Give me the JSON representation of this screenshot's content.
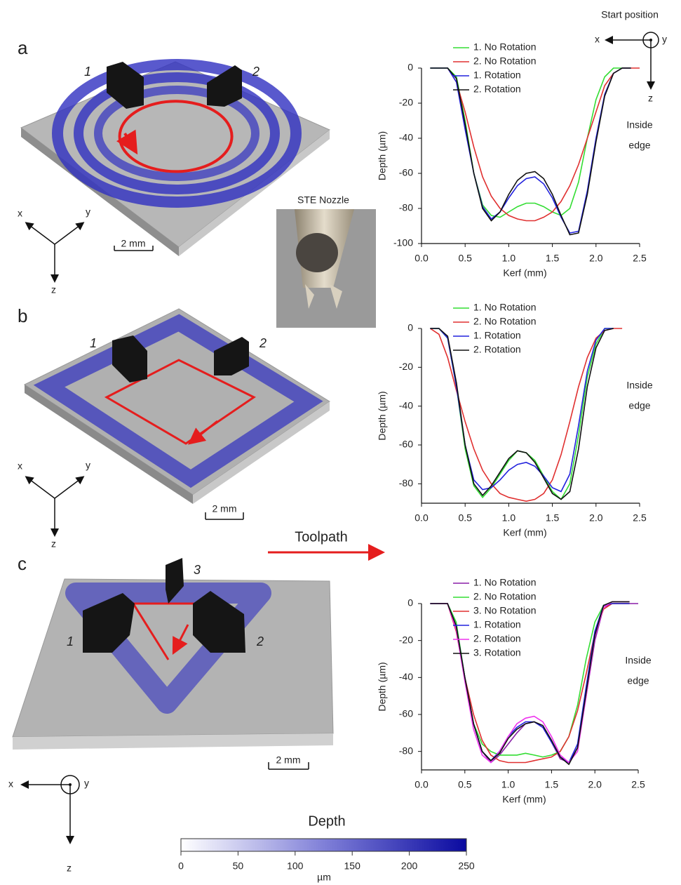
{
  "chart_data": [
    {
      "type": "line",
      "xlabel": "Kerf (mm)",
      "ylabel": "Depth (µm)",
      "annotation": [
        "Inside",
        "edge"
      ],
      "x": [
        0,
        0.1,
        0.2,
        0.3,
        0.4,
        0.5,
        0.6,
        0.7,
        0.8,
        0.9,
        1.0,
        1.1,
        1.2,
        1.3,
        1.4,
        1.5,
        1.6,
        1.7,
        1.8,
        1.9,
        2.0,
        2.1,
        2.2,
        2.3,
        2.4,
        2.5
      ],
      "xlim": [
        0,
        2.5
      ],
      "ylim": [
        -100,
        0
      ],
      "xticks": [
        {
          "value": 0,
          "label": "0.0"
        },
        0.5,
        {
          "value": 1,
          "label": "1.0"
        },
        1.5,
        {
          "value": 2,
          "label": "2.0"
        },
        2.5
      ],
      "yticks": [
        0,
        -20,
        -40,
        -60,
        -80,
        -100
      ],
      "series": [
        {
          "name": "1. No Rotation",
          "color": "#33dd33",
          "values": [
            null,
            0,
            0,
            0,
            -5,
            -30,
            -60,
            -78,
            -84,
            -85,
            -82,
            -79,
            -77,
            -77,
            -79,
            -82,
            -84,
            -80,
            -65,
            -40,
            -18,
            -5,
            0,
            0,
            0,
            null
          ]
        },
        {
          "name": "2. No Rotation",
          "color": "#e03030",
          "values": [
            null,
            null,
            null,
            0,
            -8,
            -25,
            -45,
            -62,
            -73,
            -80,
            -84,
            -86,
            -87,
            -87,
            -85,
            -82,
            -76,
            -67,
            -55,
            -40,
            -25,
            -10,
            -3,
            0,
            0,
            0
          ]
        },
        {
          "name": "1. Rotation",
          "color": "#2222dd",
          "values": [
            null,
            0,
            0,
            0,
            -8,
            -35,
            -60,
            -79,
            -86,
            -82,
            -74,
            -67,
            -63,
            -62,
            -66,
            -74,
            -85,
            -94,
            -93,
            -70,
            -40,
            -15,
            -3,
            0,
            0,
            null
          ]
        },
        {
          "name": "2. Rotation",
          "color": "#111111",
          "values": [
            null,
            0,
            0,
            0,
            -6,
            -32,
            -60,
            -80,
            -87,
            -82,
            -72,
            -64,
            -60,
            -59,
            -63,
            -72,
            -84,
            -95,
            -94,
            -72,
            -42,
            -16,
            -3,
            0,
            0,
            null
          ]
        }
      ]
    },
    {
      "type": "line",
      "xlabel": "Kerf (mm)",
      "ylabel": "Depth (µm)",
      "annotation": [
        "Inside",
        "edge"
      ],
      "x": [
        0,
        0.1,
        0.2,
        0.3,
        0.4,
        0.5,
        0.6,
        0.7,
        0.8,
        0.9,
        1.0,
        1.1,
        1.2,
        1.3,
        1.4,
        1.5,
        1.6,
        1.7,
        1.8,
        1.9,
        2.0,
        2.1,
        2.2,
        2.3,
        2.4,
        2.5
      ],
      "xlim": [
        0,
        2.5
      ],
      "ylim": [
        -90,
        0
      ],
      "xticks": [
        {
          "value": 0,
          "label": "0.0"
        },
        0.5,
        {
          "value": 1,
          "label": "1.0"
        },
        1.5,
        {
          "value": 2,
          "label": "2.0"
        },
        2.5
      ],
      "yticks": [
        0,
        -20,
        -40,
        -60,
        -80
      ],
      "series": [
        {
          "name": "1. No Rotation",
          "color": "#33dd33",
          "values": [
            null,
            0,
            0,
            -5,
            -30,
            -62,
            -81,
            -87,
            -82,
            -75,
            -68,
            -63,
            -64,
            -68,
            -76,
            -84,
            -88,
            -80,
            -55,
            -25,
            -8,
            0,
            0,
            null,
            null,
            null
          ]
        },
        {
          "name": "2. No Rotation",
          "color": "#e03030",
          "values": [
            null,
            0,
            -3,
            -15,
            -32,
            -48,
            -62,
            -73,
            -80,
            -85,
            -87,
            -88,
            -89,
            -88,
            -85,
            -78,
            -65,
            -48,
            -30,
            -15,
            -5,
            -1,
            0,
            0,
            null,
            null
          ]
        },
        {
          "name": "1. Rotation",
          "color": "#2222dd",
          "values": [
            null,
            0,
            0,
            -5,
            -30,
            -60,
            -78,
            -83,
            -82,
            -78,
            -73,
            -70,
            -69,
            -71,
            -76,
            -82,
            -84,
            -75,
            -50,
            -22,
            -6,
            0,
            0,
            null,
            null,
            null
          ]
        },
        {
          "name": "2. Rotation",
          "color": "#111111",
          "values": [
            null,
            0,
            0,
            -4,
            -28,
            -60,
            -80,
            -86,
            -81,
            -74,
            -67,
            -63,
            -64,
            -69,
            -77,
            -85,
            -88,
            -84,
            -62,
            -30,
            -10,
            -1,
            0,
            null,
            null,
            null
          ]
        }
      ]
    },
    {
      "type": "line",
      "xlabel": "Kerf (mm)",
      "ylabel": "Depth (µm)",
      "annotation": [
        "Inside",
        "edge"
      ],
      "x": [
        0,
        0.1,
        0.2,
        0.3,
        0.4,
        0.5,
        0.6,
        0.7,
        0.8,
        0.9,
        1.0,
        1.1,
        1.2,
        1.3,
        1.4,
        1.5,
        1.6,
        1.7,
        1.8,
        1.9,
        2.0,
        2.1,
        2.2,
        2.3,
        2.4,
        2.5
      ],
      "xlim": [
        0,
        2.5
      ],
      "ylim": [
        -90,
        0
      ],
      "xticks": [
        {
          "value": 0,
          "label": "0.0"
        },
        0.5,
        {
          "value": 1,
          "label": "1.0"
        },
        1.5,
        {
          "value": 2,
          "label": "2.0"
        },
        2.5
      ],
      "yticks": [
        0,
        -20,
        -40,
        -60,
        -80
      ],
      "series": [
        {
          "name": "1. No Rotation",
          "color": "#8a1fa8",
          "values": [
            null,
            0,
            0,
            0,
            -12,
            -40,
            -65,
            -80,
            -86,
            -82,
            -76,
            -70,
            -65,
            -64,
            -67,
            -75,
            -84,
            -86,
            -78,
            -50,
            -20,
            -2,
            0,
            0,
            0,
            0
          ]
        },
        {
          "name": "2. No Rotation",
          "color": "#33dd33",
          "values": [
            null,
            0,
            0,
            0,
            -10,
            -40,
            -65,
            -76,
            -80,
            -82,
            -82,
            -82,
            -81,
            -82,
            -83,
            -82,
            -80,
            -72,
            -55,
            -30,
            -10,
            -1,
            0,
            0,
            0,
            null
          ]
        },
        {
          "name": "3. No Rotation",
          "color": "#e03030",
          "values": [
            null,
            null,
            0,
            0,
            -15,
            -40,
            -60,
            -74,
            -82,
            -85,
            -86,
            -86,
            -86,
            -85,
            -84,
            -83,
            -80,
            -72,
            -58,
            -38,
            -16,
            -3,
            0,
            0,
            0,
            null
          ]
        },
        {
          "name": "1. Rotation",
          "color": "#2222dd",
          "values": [
            null,
            0,
            0,
            0,
            -12,
            -40,
            -65,
            -80,
            -85,
            -80,
            -72,
            -67,
            -64,
            -64,
            -67,
            -75,
            -83,
            -86,
            -76,
            -45,
            -15,
            -1,
            0,
            0,
            0,
            null
          ]
        },
        {
          "name": "2. Rotation",
          "color": "#ee33ee",
          "values": [
            null,
            0,
            0,
            0,
            -14,
            -42,
            -68,
            -82,
            -86,
            -80,
            -72,
            -65,
            -62,
            -61,
            -64,
            -72,
            -82,
            -86,
            -80,
            -50,
            -18,
            -2,
            1,
            1,
            1,
            null
          ]
        },
        {
          "name": "3. Rotation",
          "color": "#111111",
          "values": [
            null,
            0,
            0,
            0,
            -12,
            -40,
            -65,
            -80,
            -85,
            -81,
            -73,
            -68,
            -65,
            -64,
            -66,
            -74,
            -83,
            -87,
            -78,
            -48,
            -17,
            -1,
            1,
            1,
            1,
            null
          ]
        }
      ]
    }
  ],
  "panels": [
    {
      "label": "a",
      "nozzle_labels": [
        "1",
        "2"
      ],
      "scale_bar": "2 mm",
      "axes": [
        "x",
        "y",
        "z"
      ]
    },
    {
      "label": "b",
      "nozzle_labels": [
        "1",
        "2"
      ],
      "scale_bar": "2 mm",
      "axes": [
        "x",
        "y",
        "z"
      ]
    },
    {
      "label": "c",
      "nozzle_labels": [
        "3",
        "1",
        "2"
      ],
      "scale_bar": "2 mm",
      "axes": [
        "x",
        "y",
        "z"
      ]
    }
  ],
  "start_position": {
    "title": "Start position",
    "axes": [
      "x",
      "y",
      "z"
    ]
  },
  "nozzle_inset": {
    "title": "STE Nozzle"
  },
  "toolpath_label": "Toolpath",
  "colorbar": {
    "title": "Depth",
    "unit": "µm",
    "range": [
      0,
      250
    ],
    "ticks": [
      0,
      50,
      100,
      150,
      200,
      250
    ]
  }
}
